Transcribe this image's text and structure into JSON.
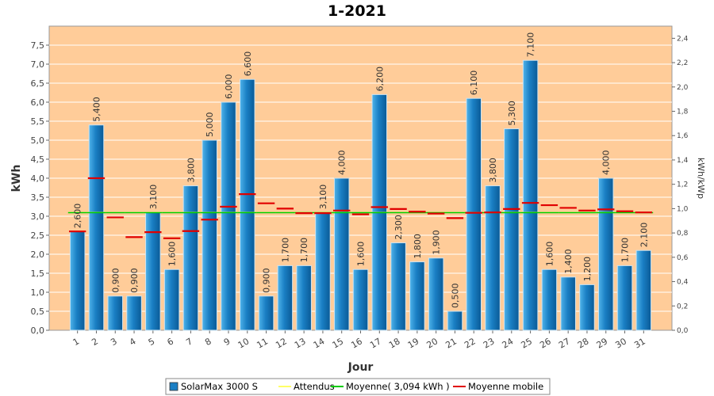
{
  "chart_data": {
    "type": "bar",
    "title": "1-2021",
    "xlabel": "Jour",
    "ylabel": "kWh",
    "ylabel_right": "kWh/kWp",
    "categories": [
      "1",
      "2",
      "3",
      "4",
      "5",
      "6",
      "7",
      "8",
      "9",
      "10",
      "11",
      "12",
      "13",
      "14",
      "15",
      "16",
      "17",
      "18",
      "19",
      "20",
      "21",
      "22",
      "23",
      "24",
      "25",
      "26",
      "27",
      "28",
      "29",
      "30",
      "31"
    ],
    "ylim": [
      0,
      8.0
    ],
    "yticks": [
      "0,0",
      "0,5",
      "1,0",
      "1,5",
      "2,0",
      "2,5",
      "3,0",
      "3,5",
      "4,0",
      "4,5",
      "5,0",
      "5,5",
      "6,0",
      "6,5",
      "7,0",
      "7,5"
    ],
    "ylim_right": [
      0,
      2.5
    ],
    "yticks_right": [
      "0,0",
      "0,2",
      "0,4",
      "0,6",
      "0,8",
      "1,0",
      "1,2",
      "1,4",
      "1,6",
      "1,8",
      "2,0",
      "2,2",
      "2,4"
    ],
    "bar_value_labels": [
      "2,600",
      "5,400",
      "0,900",
      "0,900",
      "3,100",
      "1,600",
      "3,800",
      "5,000",
      "6,000",
      "6,600",
      "0,900",
      "1,700",
      "1,700",
      "3,100",
      "4,000",
      "1,600",
      "6,200",
      "2,300",
      "1,800",
      "1,900",
      "0,500",
      "6,100",
      "3,800",
      "5,300",
      "7,100",
      "1,600",
      "1,400",
      "1,200",
      "4,000",
      "1,700",
      "2,100"
    ],
    "series": [
      {
        "name": "SolarMax 3000 S",
        "kind": "bar",
        "color": "#1a7fc4",
        "values": [
          2.6,
          5.4,
          0.9,
          0.9,
          3.1,
          1.6,
          3.8,
          5.0,
          6.0,
          6.6,
          0.9,
          1.7,
          1.7,
          3.1,
          4.0,
          1.6,
          6.2,
          2.3,
          1.8,
          1.9,
          0.5,
          6.1,
          3.8,
          5.3,
          7.1,
          1.6,
          1.4,
          1.2,
          4.0,
          1.7,
          2.1
        ]
      },
      {
        "name": "Attendus",
        "kind": "line",
        "color": "#ffff66",
        "values": [
          3.1,
          3.1,
          3.1,
          3.1,
          3.1,
          3.1,
          3.1,
          3.1,
          3.1,
          3.1,
          3.1,
          3.1,
          3.1,
          3.1,
          3.1,
          3.1,
          3.1,
          3.1,
          3.1,
          3.1,
          3.1,
          3.1,
          3.1,
          3.1,
          3.1,
          3.1,
          3.1,
          3.1,
          3.1,
          3.1,
          3.1
        ]
      },
      {
        "name": "Moyenne( 3,094 kWh )",
        "kind": "line",
        "color": "#00cc00",
        "values": [
          3.094,
          3.094,
          3.094,
          3.094,
          3.094,
          3.094,
          3.094,
          3.094,
          3.094,
          3.094,
          3.094,
          3.094,
          3.094,
          3.094,
          3.094,
          3.094,
          3.094,
          3.094,
          3.094,
          3.094,
          3.094,
          3.094,
          3.094,
          3.094,
          3.094,
          3.094,
          3.094,
          3.094,
          3.094,
          3.094,
          3.094
        ]
      },
      {
        "name": "Moyenne mobile",
        "kind": "marker",
        "color": "#e00000",
        "values": [
          2.6,
          4.0,
          2.97,
          2.45,
          2.58,
          2.42,
          2.61,
          2.91,
          3.25,
          3.58,
          3.34,
          3.2,
          3.08,
          3.08,
          3.15,
          3.05,
          3.24,
          3.19,
          3.12,
          3.07,
          2.95,
          3.09,
          3.1,
          3.19,
          3.35,
          3.29,
          3.22,
          3.15,
          3.18,
          3.13,
          3.1
        ]
      }
    ],
    "legend": [
      "SolarMax 3000 S",
      "Attendus",
      "Moyenne( 3,094 kWh )",
      "Moyenne mobile"
    ],
    "legend_position": "bottom",
    "background_color": "#ffcc99",
    "grid": true
  }
}
